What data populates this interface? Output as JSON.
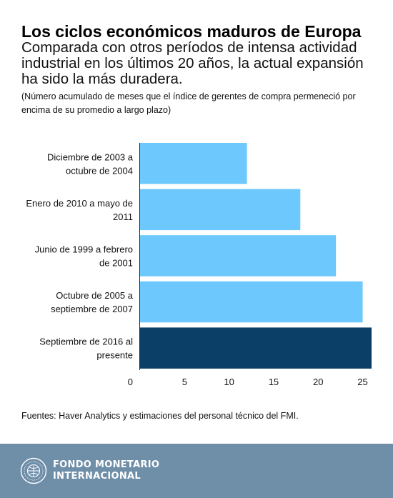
{
  "header": {
    "title": "Los ciclos económicos maduros de Europa",
    "subtitle": "Comparada con otros períodos de intensa actividad industrial en los últimos 20 años, la actual expansión ha sido la más duradera.",
    "note": "(Número acumulado de meses que el índice de gerentes de compra permeneció por encima de su promedio a largo plazo)"
  },
  "chart_data": {
    "type": "bar",
    "orientation": "horizontal",
    "categories": [
      [
        "Diciembre de 2003 a",
        "octubre de 2004"
      ],
      [
        "Enero de 2010 a mayo de",
        "2011"
      ],
      [
        "Junio de 1999 a febrero",
        "de 2001"
      ],
      [
        "Octubre de 2005 a",
        "septiembre de 2007"
      ],
      [
        "Septiembre de 2016 al",
        "presente"
      ]
    ],
    "values": [
      12,
      18,
      22,
      25,
      26
    ],
    "highlight_index": 4,
    "xlim": [
      0,
      26
    ],
    "xticks": [
      0,
      5,
      10,
      15,
      20,
      25
    ],
    "colors": {
      "bar": "#6cc8fd",
      "highlight": "#0b3f68"
    },
    "grid": false
  },
  "source": "Fuentes: Haver Analytics y estimaciones del personal técnico del FMI.",
  "footer": {
    "logo_line1": "FONDO MONETARIO",
    "logo_line2": "INTERNACIONAL",
    "logo_icon": "imf-seal-icon",
    "background": "#6f8ea8"
  }
}
